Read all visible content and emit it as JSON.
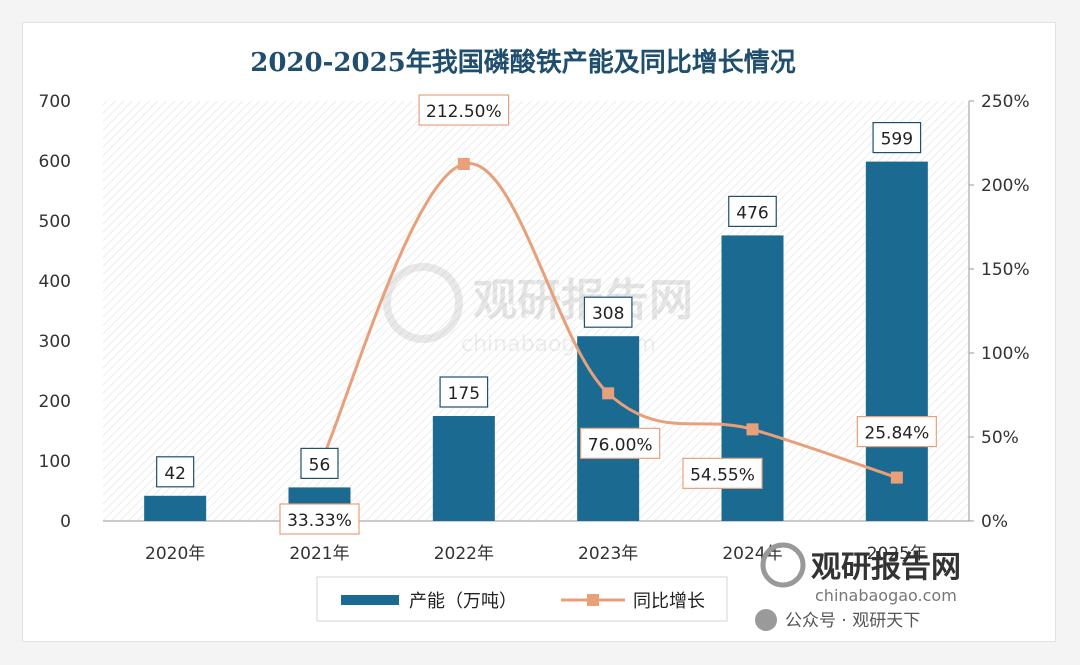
{
  "chart_data": {
    "type": "bar+line",
    "title": "2020-2025年我国磷酸铁产能及同比增长情况",
    "categories": [
      "2020年",
      "2021年",
      "2022年",
      "2023年",
      "2024年",
      "2025年"
    ],
    "series": [
      {
        "name": "产能（万吨）",
        "type": "bar",
        "axis": "left",
        "color": "#1b6a92",
        "values": [
          42,
          56,
          175,
          308,
          476,
          599
        ],
        "labels": [
          "42",
          "56",
          "175",
          "308",
          "476",
          "599"
        ]
      },
      {
        "name": "同比增长",
        "type": "line",
        "axis": "right",
        "color": "#e8a07a",
        "values": [
          null,
          33.33,
          212.5,
          76.0,
          54.55,
          25.84
        ],
        "labels": [
          "",
          "33.33%",
          "212.50%",
          "76.00%",
          "54.55%",
          "25.84%"
        ]
      }
    ],
    "y_left": {
      "min": 0,
      "max": 700,
      "ticks": [
        "0",
        "100",
        "200",
        "300",
        "400",
        "500",
        "600",
        "700"
      ]
    },
    "y_right": {
      "min": 0,
      "max": 250,
      "ticks": [
        "0%",
        "50%",
        "100%",
        "150%",
        "200%",
        "250%"
      ]
    },
    "legend_position": "bottom-center",
    "grid": false
  },
  "watermark": {
    "brand": "观研报告网",
    "url": "chinabaogao.com",
    "wechat": "公众号 · 观研天下"
  }
}
